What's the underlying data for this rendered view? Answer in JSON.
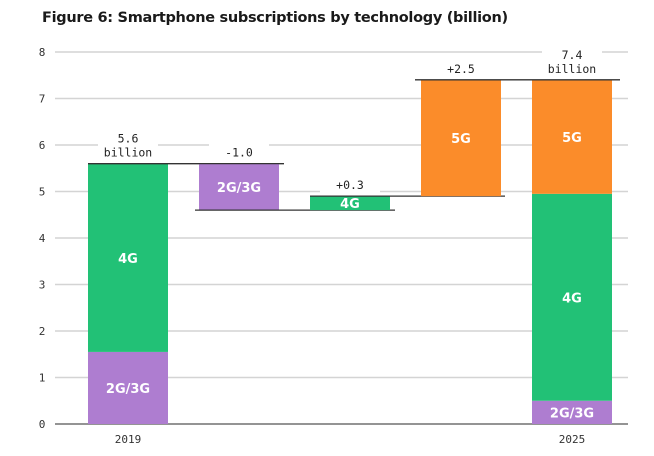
{
  "chart_data": {
    "type": "bar",
    "subtype": "waterfall",
    "title": "Figure 6: Smartphone subscriptions by technology (billion)",
    "xlabel": "",
    "ylabel": "",
    "ylim": [
      0,
      8
    ],
    "yticks": [
      0,
      1,
      2,
      3,
      4,
      5,
      6,
      7,
      8
    ],
    "grid": true,
    "colors": {
      "2G/3G": "#ae7dd0",
      "4G": "#22c176",
      "5G": "#fb8c2a"
    },
    "bars": [
      {
        "category": "2019",
        "kind": "total",
        "segments": [
          {
            "name": "2G/3G",
            "value": 1.55
          },
          {
            "name": "4G",
            "value": 4.05
          }
        ],
        "annotation": [
          "5.6",
          "billion"
        ]
      },
      {
        "category": "",
        "kind": "delta",
        "segments": [
          {
            "name": "2G/3G",
            "value": -1.0
          }
        ],
        "base": 5.6,
        "annotation": [
          "-1.0"
        ]
      },
      {
        "category": "",
        "kind": "delta",
        "segments": [
          {
            "name": "4G",
            "value": 0.3
          }
        ],
        "base": 4.6,
        "annotation": [
          "+0.3"
        ]
      },
      {
        "category": "",
        "kind": "delta",
        "segments": [
          {
            "name": "5G",
            "value": 2.5
          }
        ],
        "base": 4.9,
        "annotation": [
          "+2.5"
        ]
      },
      {
        "category": "2025",
        "kind": "total",
        "segments": [
          {
            "name": "2G/3G",
            "value": 0.5
          },
          {
            "name": "4G",
            "value": 4.45
          },
          {
            "name": "5G",
            "value": 2.45
          }
        ],
        "annotation": [
          "7.4",
          "billion"
        ]
      }
    ]
  }
}
